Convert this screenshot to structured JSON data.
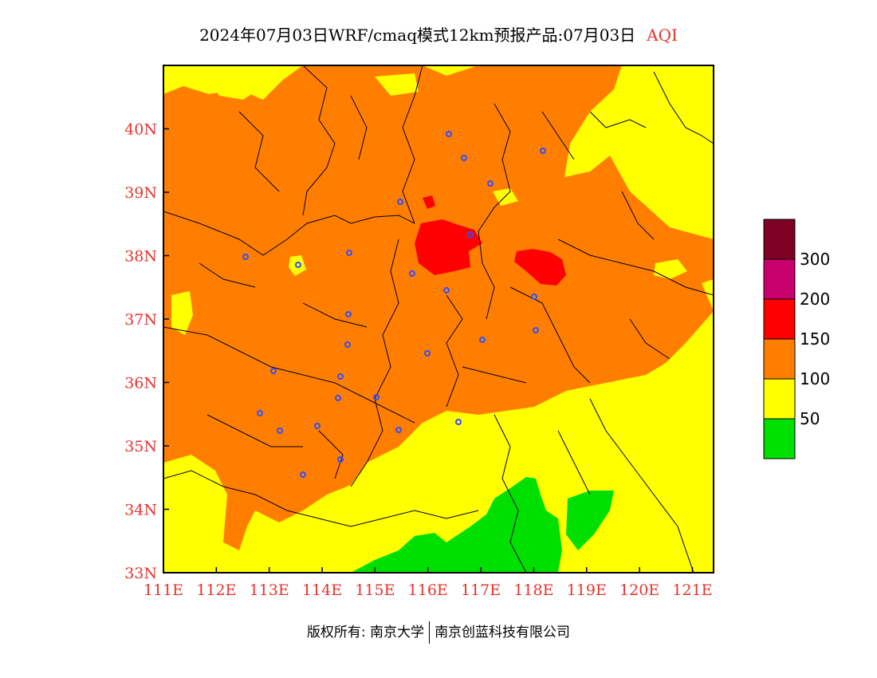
{
  "title": {
    "main": "2024年07月03日WRF/cmaq模式12km预报产品:07月03日",
    "variable": "AQI"
  },
  "map": {
    "lon_range": [
      111,
      121.4
    ],
    "lat_range": [
      33,
      41
    ],
    "lon_ticks": [
      "111E",
      "112E",
      "113E",
      "114E",
      "115E",
      "116E",
      "117E",
      "118E",
      "119E",
      "120E",
      "121E"
    ],
    "lat_ticks": [
      "33N",
      "34N",
      "35N",
      "36N",
      "37N",
      "38N",
      "39N",
      "40N"
    ],
    "colors": {
      "good": "#00e000",
      "moderate": "#ffff00",
      "unhealthy_sensitive": "#ff7e00",
      "unhealthy": "#ff0000",
      "very_unhealthy": "#c8006e",
      "hazardous": "#7e0023",
      "city_marker": "#3050ff",
      "tick_label": "#e8322e"
    }
  },
  "legend": {
    "labels": [
      "50",
      "100",
      "150",
      "200",
      "300"
    ],
    "colors": [
      "#00e000",
      "#ffff00",
      "#ff7e00",
      "#ff0000",
      "#c8006e",
      "#7e0023"
    ]
  },
  "footer": {
    "left": "版权所有: 南京大学",
    "right": "南京创蓝科技有限公司"
  }
}
